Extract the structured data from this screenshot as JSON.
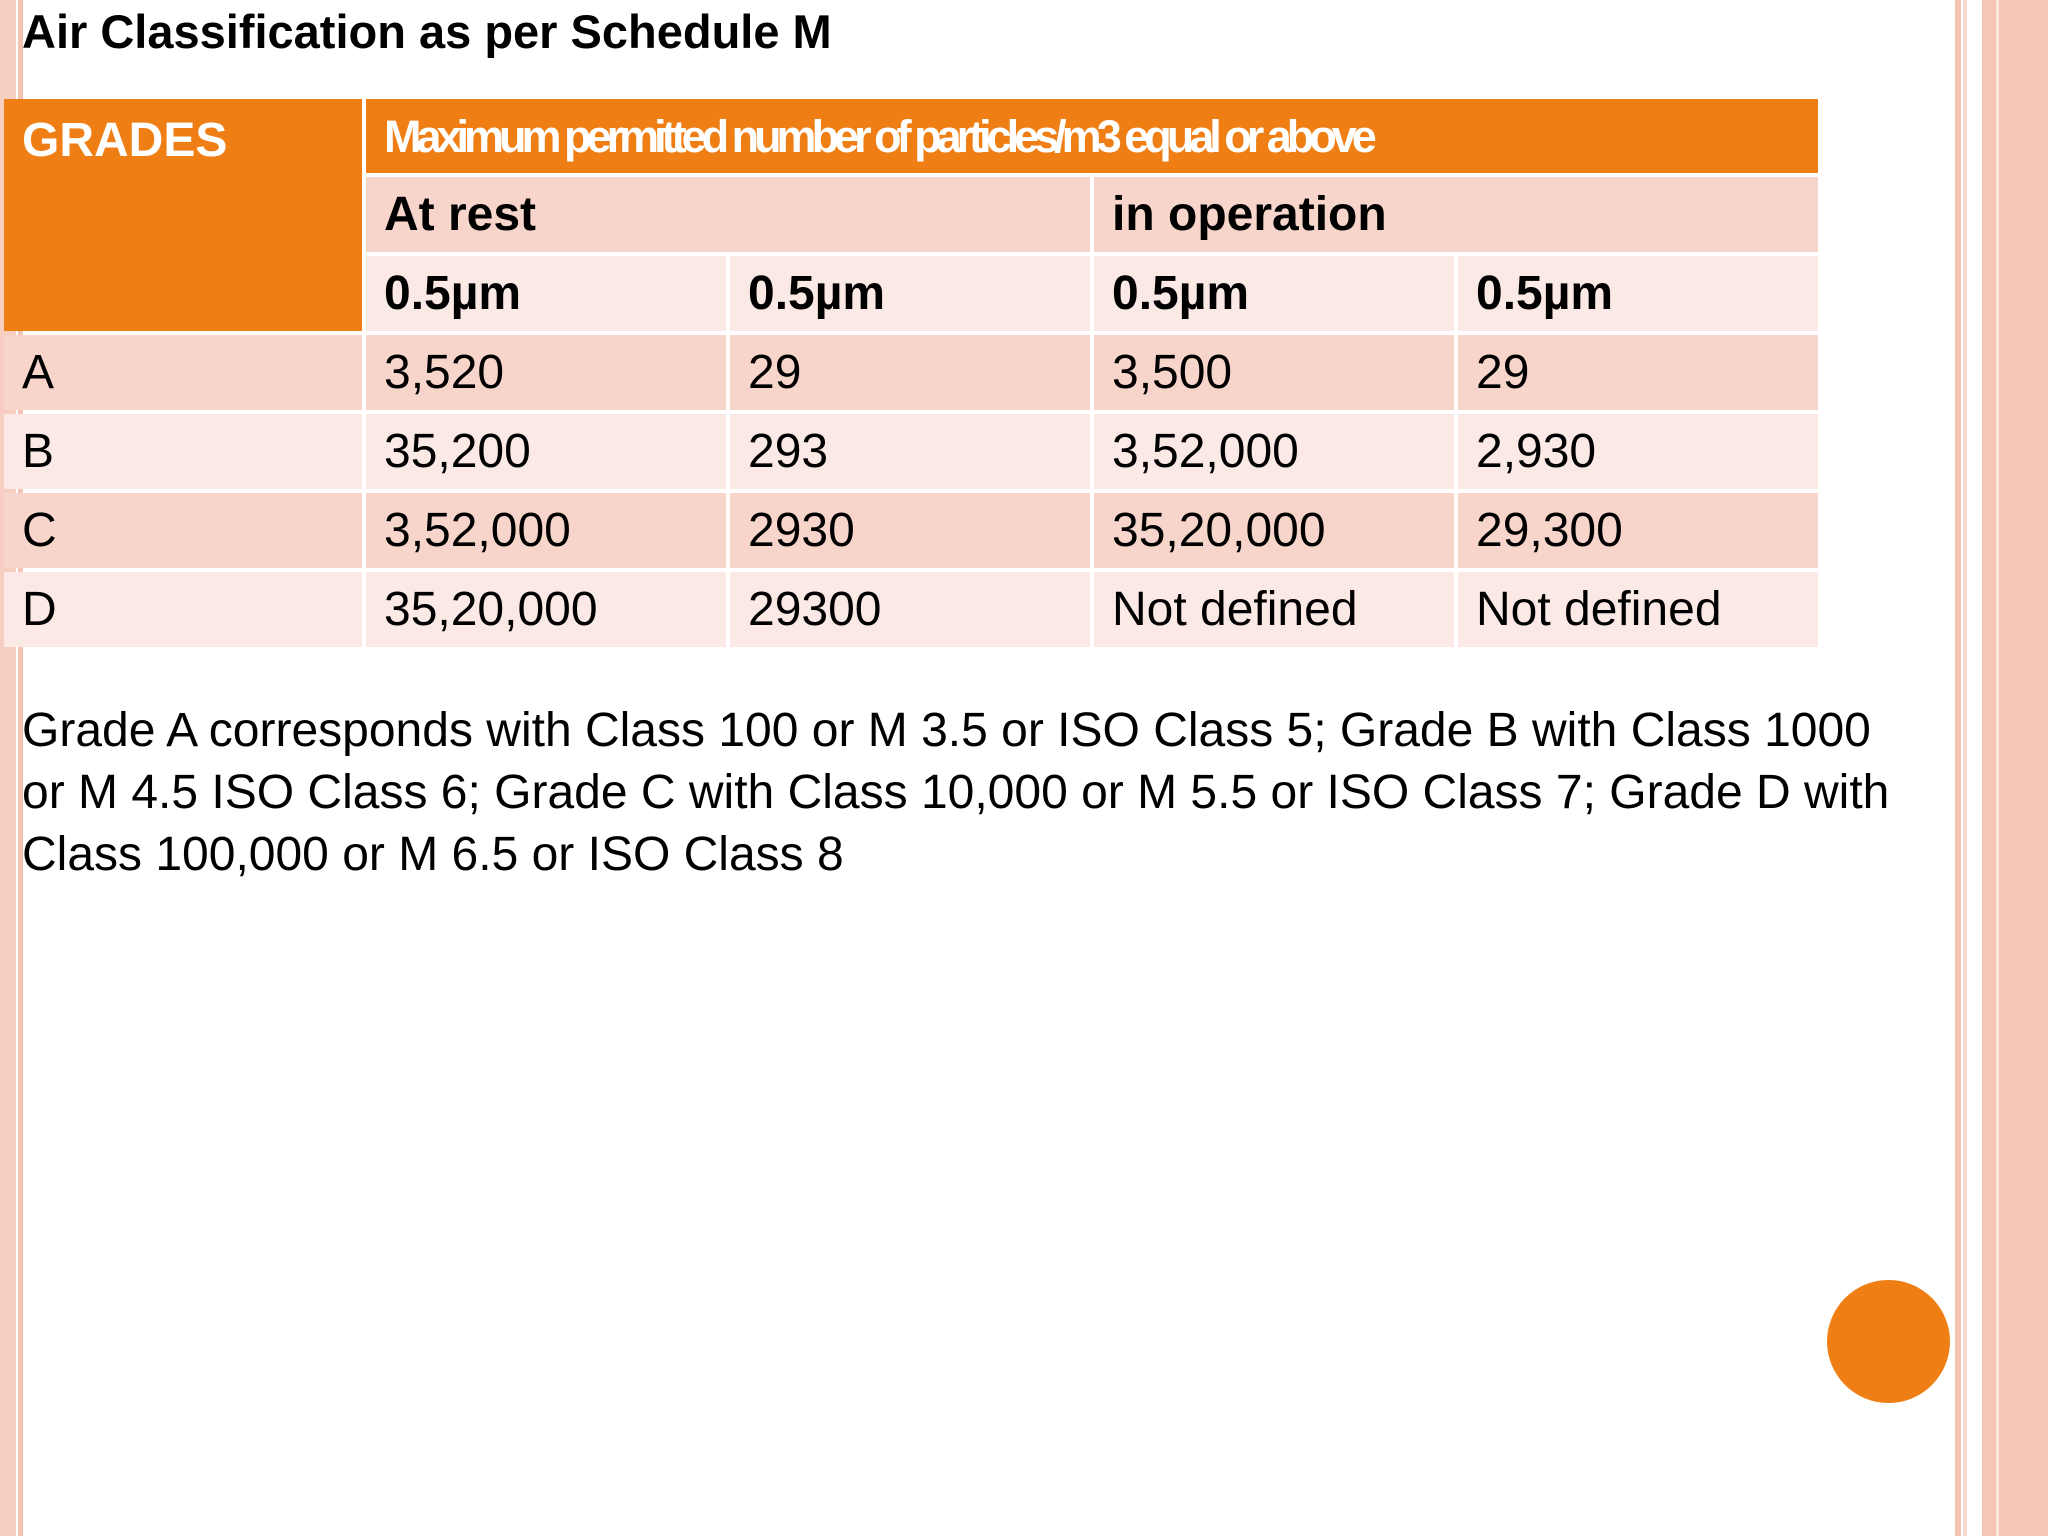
{
  "title": "Air Classification as per Schedule M",
  "table": {
    "grades_header": "GRADES",
    "max_header": "Maximum permitted number of particles/m3 equal or above",
    "group_headers": [
      "At rest",
      "in operation"
    ],
    "unit_headers": [
      "0.5µm",
      "0.5µm",
      "0.5µm",
      "0.5µm"
    ],
    "rows": [
      {
        "grade": "A",
        "values": [
          "3,520",
          "29",
          "3,500",
          "29"
        ]
      },
      {
        "grade": "B",
        "values": [
          "35,200",
          "293",
          "3,52,000",
          "2,930"
        ]
      },
      {
        "grade": "C",
        "values": [
          "3,52,000",
          "2930",
          "35,20,000",
          "29,300"
        ]
      },
      {
        "grade": "D",
        "values": [
          "35,20,000",
          "29300",
          "Not defined",
          "Not defined"
        ]
      }
    ]
  },
  "note": "Grade A corresponds with Class 100 or M 3.5 or ISO Class 5; Grade B with Class 1000 or M 4.5 ISO Class 6; Grade C with Class 10,000 or M 5.5 or ISO Class 7; Grade D with Class 100,000 or M 6.5 or ISO Class 8",
  "colors": {
    "accent": "#ef7f14",
    "row_dark": "#f8d5cb",
    "row_light": "#fbe9e5",
    "stripe_outer": "#f4c3b2"
  }
}
